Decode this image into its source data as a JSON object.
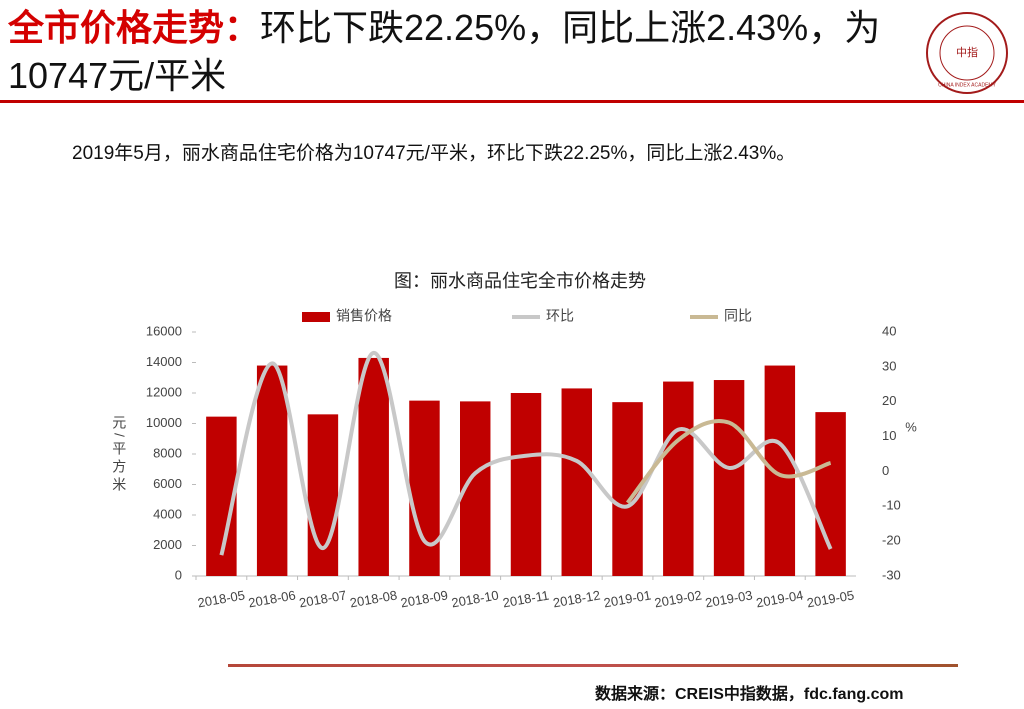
{
  "header": {
    "title_highlight": "全市价格走势：",
    "title_rest": "环比下跌22.25%，同比上涨2.43%，为10747元/平米",
    "logo_text": "中指",
    "logo_caption": "CHINA INDEX ACADEMY"
  },
  "summary": "2019年5月，丽水商品住宅价格为10747元/平米，环比下跌22.25%，同比上涨2.43%。",
  "source": "数据来源：CREIS中指数据，fdc.fang.com",
  "chart_data": {
    "type": "bar",
    "title": "图：丽水商品住宅全市价格走势",
    "categories": [
      "2018-05",
      "2018-06",
      "2018-07",
      "2018-08",
      "2018-09",
      "2018-10",
      "2018-11",
      "2018-12",
      "2019-01",
      "2019-02",
      "2019-03",
      "2019-04",
      "2019-05"
    ],
    "series": [
      {
        "name": "销售价格",
        "type": "bar",
        "color": "#c00000",
        "values": [
          10450,
          13800,
          10600,
          14300,
          11500,
          11450,
          12000,
          12300,
          11400,
          12750,
          12850,
          13800,
          10747
        ]
      },
      {
        "name": "环比",
        "type": "line",
        "axis": "y2",
        "color": "#c8c8c8",
        "values": [
          -24,
          31,
          -22,
          34,
          -20,
          -0.5,
          4.5,
          3,
          -10,
          12,
          1,
          8,
          -22.25
        ]
      },
      {
        "name": "同比",
        "type": "line",
        "axis": "y2",
        "color": "#c9b994",
        "values": [
          null,
          null,
          null,
          null,
          null,
          null,
          null,
          null,
          -9,
          9,
          14,
          -1,
          2.43
        ]
      }
    ],
    "ylabel": "元/平方米",
    "y2label": "%",
    "ylim": [
      0,
      16000
    ],
    "yticks": [
      0,
      2000,
      4000,
      6000,
      8000,
      10000,
      12000,
      14000,
      16000
    ],
    "y2lim": [
      -30,
      40
    ],
    "y2ticks": [
      -30,
      -20,
      -10,
      0,
      10,
      20,
      30,
      40
    ],
    "legend": "top",
    "grid": false
  }
}
